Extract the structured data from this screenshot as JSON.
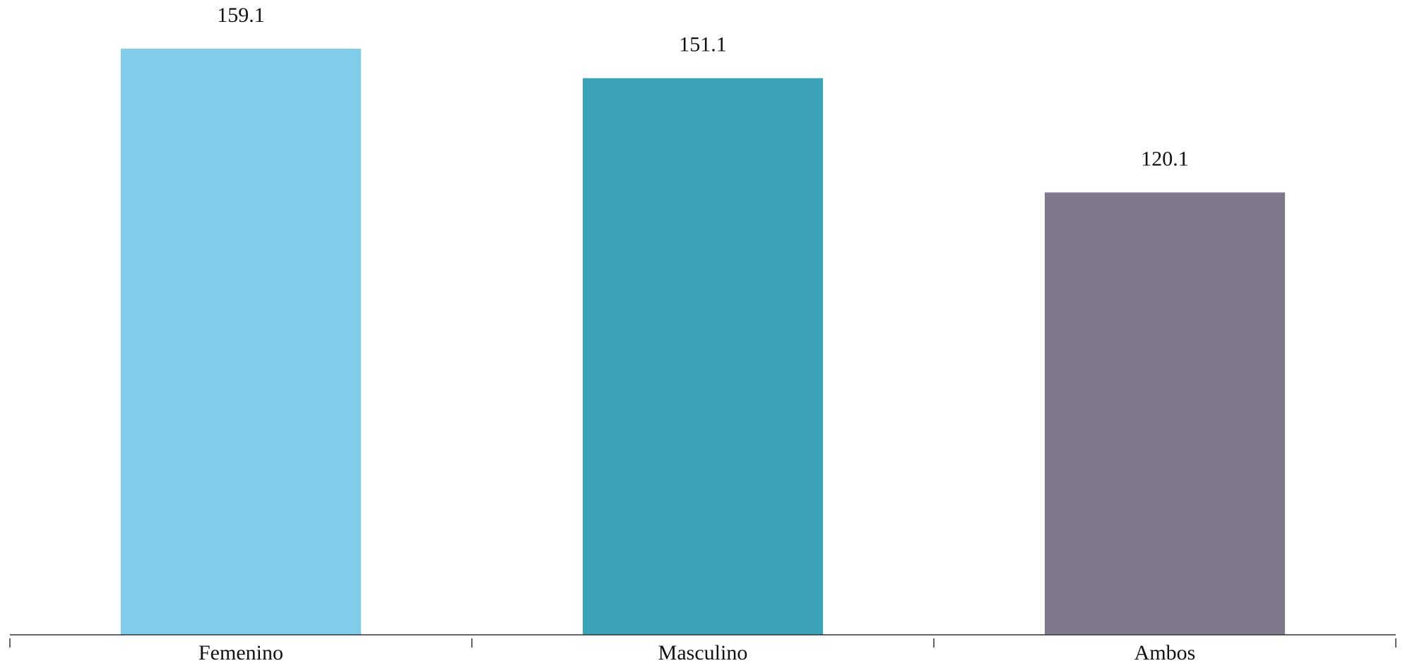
{
  "chart_data": {
    "type": "bar",
    "title": "",
    "xlabel": "",
    "ylabel": "",
    "categories": [
      "Femenino",
      "Masculino",
      "Ambos"
    ],
    "values": [
      159.1,
      151.1,
      120.1
    ],
    "value_labels": [
      "159.1",
      "151.1",
      "120.1"
    ],
    "colors": [
      "#7fcdea",
      "#3aa3b7",
      "#81788e"
    ],
    "ylim": [
      0,
      159.1
    ],
    "grid": false,
    "legend": "none"
  }
}
